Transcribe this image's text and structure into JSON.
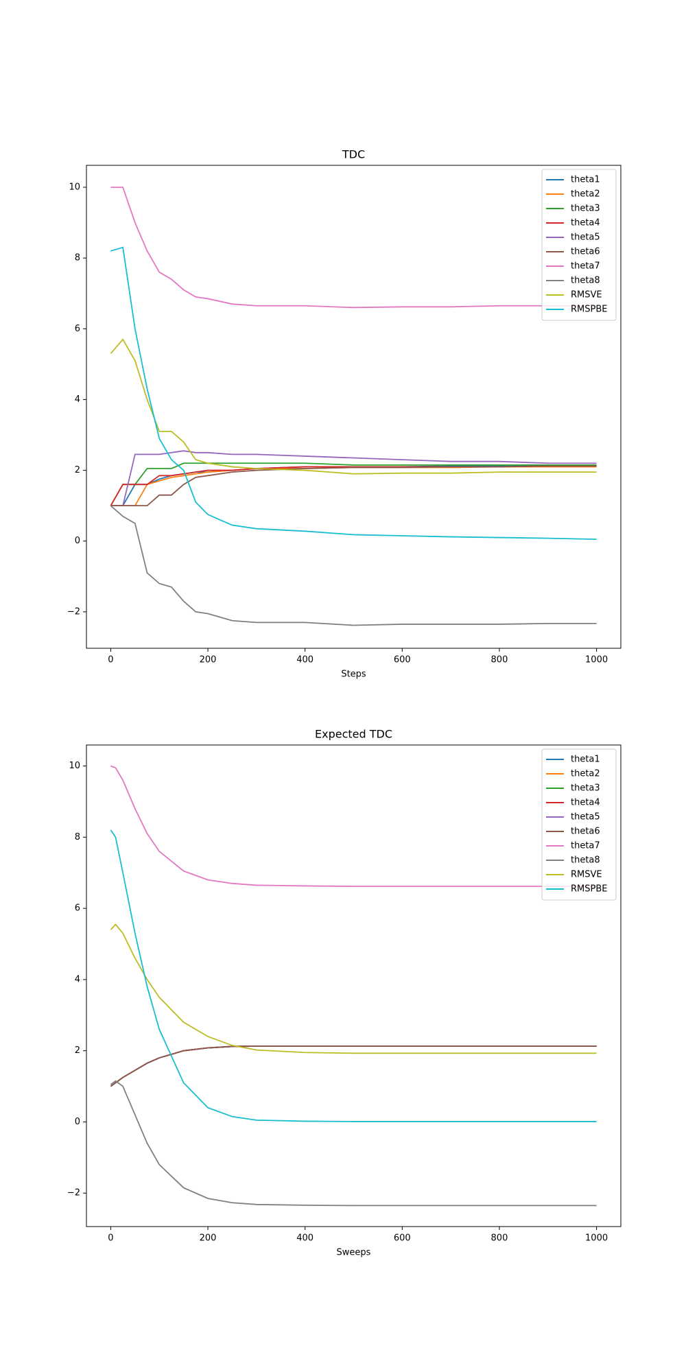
{
  "chart_data": [
    {
      "type": "line",
      "title": "TDC",
      "xlabel": "Steps",
      "legend": "upper right",
      "xlim": [
        -50,
        1050
      ],
      "ylim": [
        -3.03,
        10.62
      ],
      "xticks": [
        0,
        200,
        400,
        600,
        800,
        1000
      ],
      "yticks": [
        {
          "value": -2,
          "label": "−2"
        },
        0,
        2,
        4,
        6,
        8,
        10
      ],
      "x": [
        0,
        25,
        50,
        75,
        100,
        125,
        150,
        175,
        200,
        250,
        300,
        400,
        500,
        600,
        700,
        800,
        900,
        1000
      ],
      "series": [
        {
          "name": "theta1",
          "color": "#1f77b4",
          "values": [
            1,
            1,
            1.6,
            1.6,
            1.75,
            1.85,
            1.9,
            1.95,
            1.95,
            2.0,
            2.05,
            2.1,
            2.1,
            2.1,
            2.12,
            2.12,
            2.12,
            2.12
          ]
        },
        {
          "name": "theta2",
          "color": "#ff7f0e",
          "values": [
            1,
            1,
            1,
            1.6,
            1.7,
            1.8,
            1.85,
            1.9,
            1.95,
            2.0,
            2.05,
            2.05,
            2.08,
            2.08,
            2.08,
            2.1,
            2.1,
            2.1
          ]
        },
        {
          "name": "theta3",
          "color": "#2ca02c",
          "values": [
            1,
            1.6,
            1.6,
            2.05,
            2.05,
            2.05,
            2.2,
            2.2,
            2.2,
            2.2,
            2.2,
            2.2,
            2.15,
            2.15,
            2.15,
            2.15,
            2.15,
            2.15
          ]
        },
        {
          "name": "theta4",
          "color": "#d62728",
          "values": [
            1,
            1.6,
            1.6,
            1.6,
            1.85,
            1.85,
            1.9,
            1.95,
            2.0,
            2.0,
            2.05,
            2.1,
            2.1,
            2.1,
            2.1,
            2.1,
            2.12,
            2.12
          ]
        },
        {
          "name": "theta5",
          "color": "#9467bd",
          "values": [
            1,
            1,
            2.45,
            2.45,
            2.45,
            2.5,
            2.55,
            2.5,
            2.5,
            2.45,
            2.45,
            2.4,
            2.35,
            2.3,
            2.25,
            2.25,
            2.2,
            2.2
          ]
        },
        {
          "name": "theta6",
          "color": "#8c564b",
          "values": [
            1,
            1,
            1,
            1,
            1.3,
            1.3,
            1.6,
            1.8,
            1.85,
            1.95,
            2.0,
            2.05,
            2.08,
            2.08,
            2.1,
            2.1,
            2.12,
            2.12
          ]
        },
        {
          "name": "theta7",
          "color": "#e377c2",
          "values": [
            10,
            10,
            9,
            8.2,
            7.6,
            7.4,
            7.1,
            6.9,
            6.85,
            6.7,
            6.65,
            6.65,
            6.6,
            6.62,
            6.62,
            6.65,
            6.65,
            6.65
          ]
        },
        {
          "name": "theta8",
          "color": "#7f7f7f",
          "values": [
            1,
            0.7,
            0.5,
            -0.9,
            -1.2,
            -1.3,
            -1.7,
            -2.0,
            -2.05,
            -2.25,
            -2.3,
            -2.3,
            -2.38,
            -2.35,
            -2.35,
            -2.35,
            -2.33,
            -2.33
          ]
        },
        {
          "name": "RMSVE",
          "color": "#bcbd22",
          "values": [
            5.3,
            5.7,
            5.1,
            4.0,
            3.1,
            3.1,
            2.8,
            2.3,
            2.2,
            2.1,
            2.05,
            2.0,
            1.9,
            1.92,
            1.92,
            1.95,
            1.95,
            1.95
          ]
        },
        {
          "name": "RMSPBE",
          "color": "#17becf",
          "values": [
            8.2,
            8.3,
            6,
            4.3,
            2.9,
            2.3,
            2.0,
            1.1,
            0.75,
            0.45,
            0.35,
            0.28,
            0.18,
            0.15,
            0.12,
            0.1,
            0.08,
            0.05
          ]
        }
      ]
    },
    {
      "type": "line",
      "title": "Expected TDC",
      "xlabel": "Sweeps",
      "legend": "upper right",
      "xlim": [
        -50,
        1050
      ],
      "ylim": [
        -2.94,
        10.59
      ],
      "xticks": [
        0,
        200,
        400,
        600,
        800,
        1000
      ],
      "yticks": [
        {
          "value": -2,
          "label": "−2"
        },
        0,
        2,
        4,
        6,
        8,
        10
      ],
      "x": [
        0,
        10,
        25,
        50,
        75,
        100,
        150,
        200,
        250,
        300,
        400,
        500,
        600,
        800,
        1000
      ],
      "series": [
        {
          "name": "theta1",
          "color": "#1f77b4",
          "values": [
            1,
            1.1,
            1.25,
            1.45,
            1.65,
            1.8,
            2.0,
            2.08,
            2.12,
            2.13,
            2.13,
            2.13,
            2.13,
            2.13,
            2.13
          ]
        },
        {
          "name": "theta2",
          "color": "#ff7f0e",
          "values": [
            1,
            1.1,
            1.25,
            1.45,
            1.65,
            1.8,
            2.0,
            2.08,
            2.12,
            2.13,
            2.13,
            2.13,
            2.13,
            2.13,
            2.13
          ]
        },
        {
          "name": "theta3",
          "color": "#2ca02c",
          "values": [
            1,
            1.1,
            1.25,
            1.45,
            1.65,
            1.8,
            2.0,
            2.08,
            2.12,
            2.13,
            2.13,
            2.13,
            2.13,
            2.13,
            2.13
          ]
        },
        {
          "name": "theta4",
          "color": "#d62728",
          "values": [
            1,
            1.1,
            1.25,
            1.45,
            1.65,
            1.8,
            2.0,
            2.08,
            2.12,
            2.13,
            2.13,
            2.13,
            2.13,
            2.13,
            2.13
          ]
        },
        {
          "name": "theta5",
          "color": "#9467bd",
          "values": [
            1,
            1.1,
            1.25,
            1.45,
            1.65,
            1.8,
            2.0,
            2.08,
            2.12,
            2.13,
            2.13,
            2.13,
            2.13,
            2.13,
            2.13
          ]
        },
        {
          "name": "theta6",
          "color": "#8c564b",
          "values": [
            1,
            1.1,
            1.25,
            1.45,
            1.65,
            1.8,
            2.0,
            2.08,
            2.12,
            2.13,
            2.13,
            2.13,
            2.13,
            2.13,
            2.13
          ]
        },
        {
          "name": "theta7",
          "color": "#e377c2",
          "values": [
            10,
            9.95,
            9.6,
            8.8,
            8.1,
            7.6,
            7.05,
            6.8,
            6.7,
            6.65,
            6.63,
            6.62,
            6.62,
            6.62,
            6.62
          ]
        },
        {
          "name": "theta8",
          "color": "#7f7f7f",
          "values": [
            1.05,
            1.15,
            1.0,
            0.2,
            -0.6,
            -1.2,
            -1.85,
            -2.15,
            -2.27,
            -2.32,
            -2.34,
            -2.35,
            -2.35,
            -2.35,
            -2.35
          ]
        },
        {
          "name": "RMSVE",
          "color": "#bcbd22",
          "values": [
            5.4,
            5.55,
            5.3,
            4.6,
            4.0,
            3.5,
            2.8,
            2.4,
            2.15,
            2.02,
            1.95,
            1.93,
            1.93,
            1.93,
            1.93
          ]
        },
        {
          "name": "RMSPBE",
          "color": "#17becf",
          "values": [
            8.2,
            8.0,
            7.0,
            5.3,
            3.8,
            2.6,
            1.1,
            0.4,
            0.15,
            0.05,
            0.02,
            0.01,
            0.01,
            0.01,
            0.01
          ]
        }
      ]
    }
  ]
}
